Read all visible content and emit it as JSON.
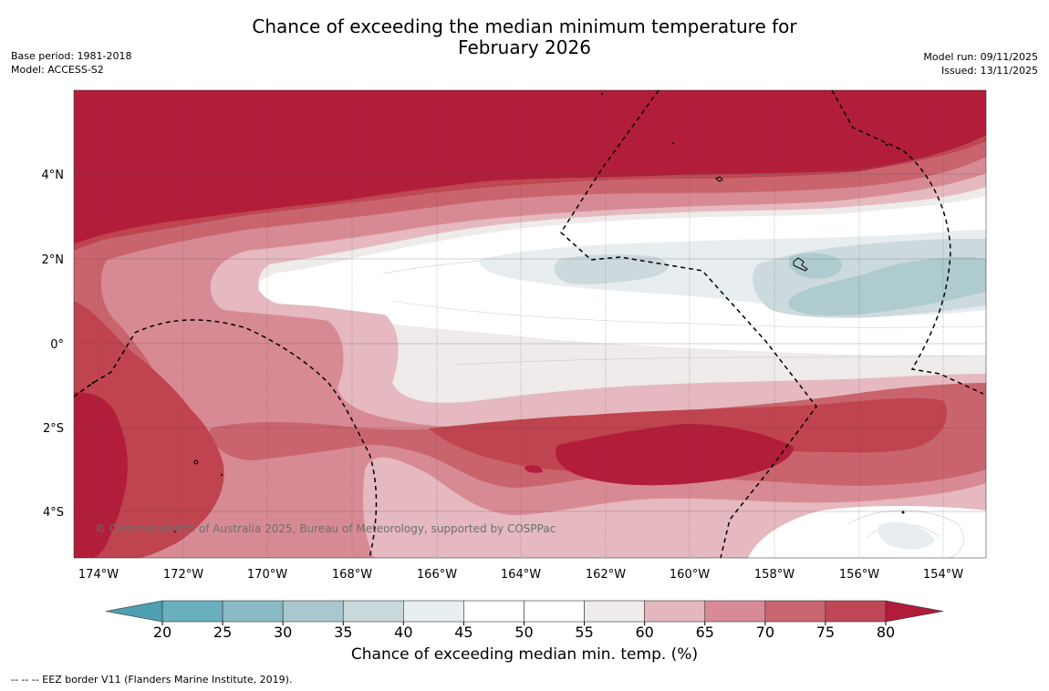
{
  "title": {
    "line1": "Chance of exceeding the median minimum temperature for",
    "line2": "February 2026"
  },
  "meta_left": {
    "base_period": "Base period: 1981-2018",
    "model": "Model: ACCESS-S2"
  },
  "meta_right": {
    "model_run": "Model run: 09/11/2025",
    "issued": "Issued: 13/11/2025"
  },
  "copyright": "© Commonwealth of Australia 2025, Bureau of Meteorology, supported by COSPPac",
  "lon_ticks": [
    "174°W",
    "172°W",
    "170°W",
    "168°W",
    "166°W",
    "164°W",
    "162°W",
    "160°W",
    "158°W",
    "156°W",
    "154°W"
  ],
  "lat_ticks": [
    "4°N",
    "2°N",
    "0°",
    "2°S",
    "4°S"
  ],
  "colorbar": {
    "label": "Chance of exceeding median min. temp. (%)",
    "ticks": [
      "20",
      "25",
      "30",
      "35",
      "40",
      "45",
      "50",
      "55",
      "60",
      "65",
      "70",
      "75",
      "80"
    ],
    "under_color": "#4e9fb0",
    "over_color": "#b01c3a",
    "colors": [
      "#6aafbe",
      "#8abbc5",
      "#a9c8cd",
      "#c9d8db",
      "#e9eff1",
      "#ffffff",
      "#ffffff",
      "#efeceb",
      "#e4b7bf",
      "#d88a96",
      "#c9666f",
      "#be4655"
    ]
  },
  "map_colors": {
    "c80": "#b21e3a",
    "c75": "#c0444f",
    "c70": "#c9646d",
    "c65": "#d88a94",
    "c60": "#e5b9bf",
    "c55": "#eeebea",
    "c40": "#e8eef0",
    "c35": "#cddadd",
    "c30": "#aecbcf"
  },
  "footer": "-- -- -- EEZ border V11 (Flanders Marine Institute, 2019)."
}
